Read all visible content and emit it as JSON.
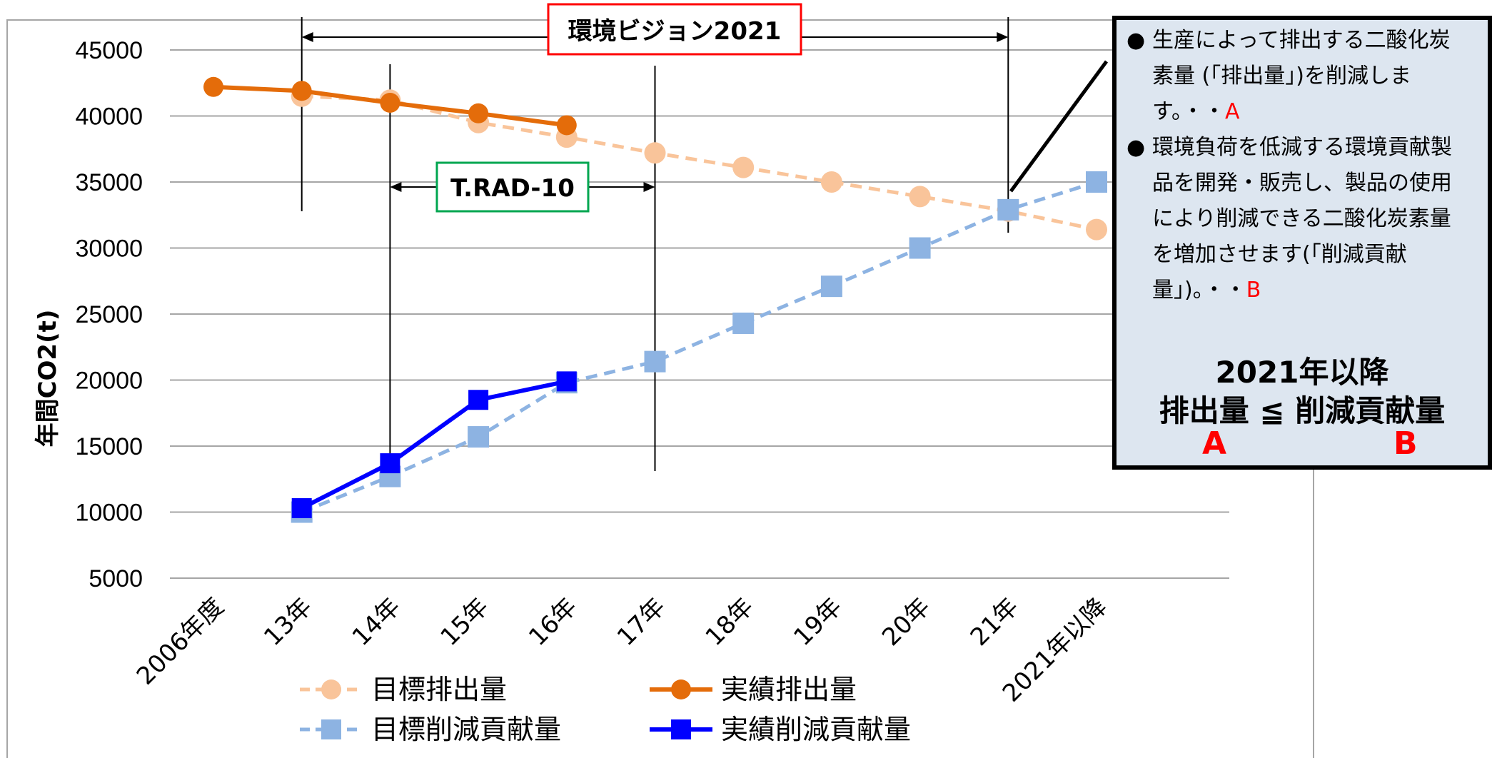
{
  "chart_data": {
    "type": "line",
    "ylabel": "年間CO2(t)",
    "ylim": [
      5000,
      45000
    ],
    "yticks": [
      5000,
      10000,
      15000,
      20000,
      25000,
      30000,
      35000,
      40000,
      45000
    ],
    "categories": [
      "2006年度",
      "13年",
      "14年",
      "15年",
      "16年",
      "17年",
      "18年",
      "19年",
      "20年",
      "21年",
      "2021年以降"
    ],
    "series": [
      {
        "name": "目標排出量",
        "color": "#f9c49a",
        "dashed": true,
        "marker": "circle",
        "values": [
          null,
          41500,
          41200,
          39500,
          38400,
          37200,
          36100,
          35000,
          33900,
          32800,
          31400
        ]
      },
      {
        "name": "実績排出量",
        "color": "#e46c0a",
        "dashed": false,
        "marker": "circle",
        "values": [
          42200,
          41900,
          41000,
          40200,
          39300,
          null,
          null,
          null,
          null,
          null,
          null
        ]
      },
      {
        "name": "目標削減貢献量",
        "color": "#8db3e2",
        "dashed": true,
        "marker": "square",
        "values": [
          null,
          10000,
          12700,
          15700,
          19800,
          21400,
          24300,
          27100,
          30000,
          32900,
          35000
        ]
      },
      {
        "name": "実績削減貢献量",
        "color": "#0000ff",
        "dashed": false,
        "marker": "square",
        "values": [
          null,
          10300,
          13700,
          18500,
          19900,
          null,
          null,
          null,
          null,
          null,
          null
        ]
      }
    ],
    "annotations": [
      {
        "text": "環境ビジョン2021",
        "from": "13年",
        "to": "21年",
        "box_color": "#ff0000"
      },
      {
        "text": "T.RAD-10",
        "from": "14年",
        "to": "17年",
        "box_color": "#00a650"
      }
    ],
    "legend_placement": "bottom"
  },
  "callout": {
    "bullet1": "生産によって排出する二酸化炭素量 (「排出量」)を削減します。・・",
    "bullet1_marker": "A",
    "bullet2": "環境負荷を低減する環境貢献製品を開発・販売し、製品の使用により削減できる二酸化炭素量を増加させます(「削減貢献量」)。・・",
    "bullet2_marker": "B",
    "bullet_glyph": "●",
    "heading": "2021年以降",
    "relation": "排出量 ≦ 削減貢献量",
    "label_a": "A",
    "label_b": "B"
  }
}
